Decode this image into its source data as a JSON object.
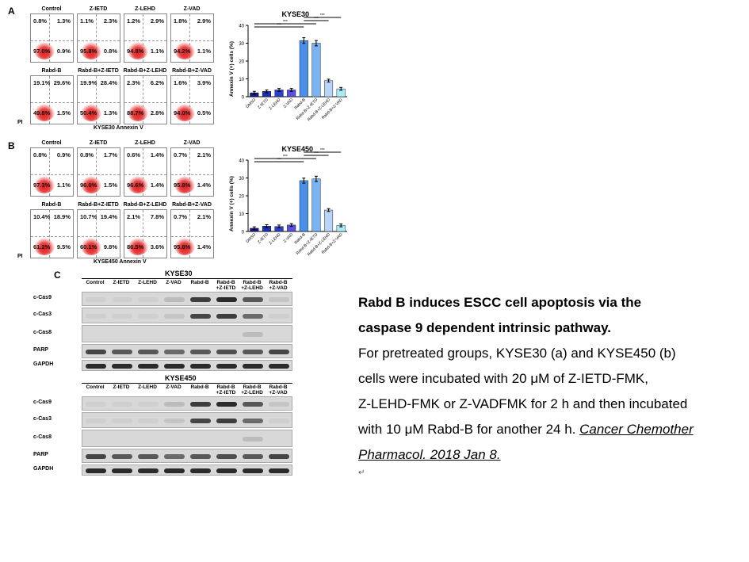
{
  "panels": {
    "a": "A",
    "b": "B",
    "c": "C"
  },
  "flow_a": {
    "top_labels": [
      "Control",
      "Z-IETD",
      "Z-LEHD",
      "Z-VAD"
    ],
    "bottom_labels": [
      "Rabd-B",
      "Rabd-B+Z-IETD",
      "Rabd-B+Z-LEHD",
      "Rabd-B+Z-VAD"
    ],
    "top_q": [
      [
        "0.8%",
        "1.3%",
        "97.0%",
        "0.9%"
      ],
      [
        "1.1%",
        "2.3%",
        "95.8%",
        "0.8%"
      ],
      [
        "1.2%",
        "2.9%",
        "94.8%",
        "1.1%"
      ],
      [
        "1.8%",
        "2.9%",
        "94.2%",
        "1.1%"
      ]
    ],
    "bottom_q": [
      [
        "19.1%",
        "29.6%",
        "49.8%",
        "1.5%"
      ],
      [
        "19.9%",
        "28.4%",
        "50.4%",
        "1.3%"
      ],
      [
        "2.3%",
        "6.2%",
        "88.7%",
        "2.8%"
      ],
      [
        "1.6%",
        "3.9%",
        "94.0%",
        "0.5%"
      ]
    ],
    "xaxis": "KYSE30 Annexin V",
    "yaxis": "PI"
  },
  "flow_b": {
    "top_labels": [
      "Control",
      "Z-IETD",
      "Z-LEHD",
      "Z-VAD"
    ],
    "bottom_labels": [
      "Rabd-B",
      "Rabd-B+Z-IETD",
      "Rabd-B+Z-LEHD",
      "Rabd-B+Z-VAD"
    ],
    "top_q": [
      [
        "0.8%",
        "0.9%",
        "97.3%",
        "1.1%"
      ],
      [
        "0.8%",
        "1.7%",
        "96.0%",
        "1.5%"
      ],
      [
        "0.6%",
        "1.4%",
        "96.6%",
        "1.4%"
      ],
      [
        "0.7%",
        "2.1%",
        "95.8%",
        "1.4%"
      ]
    ],
    "bottom_q": [
      [
        "10.4%",
        "18.9%",
        "61.2%",
        "9.5%"
      ],
      [
        "10.7%",
        "19.4%",
        "60.1%",
        "9.8%"
      ],
      [
        "2.1%",
        "7.8%",
        "86.5%",
        "3.6%"
      ],
      [
        "0.7%",
        "2.1%",
        "95.8%",
        "1.4%"
      ]
    ],
    "xaxis": "KYSE450 Annexin V",
    "yaxis": "PI"
  },
  "chart_data": [
    {
      "type": "bar",
      "title": "KYSE30",
      "ylabel": "Annexin V (+) cells (%)",
      "ylim": [
        0,
        40
      ],
      "yticks": [
        0,
        10,
        20,
        30,
        40
      ],
      "categories": [
        "DMSO",
        "Z-IETD",
        "Z-LEHD",
        "Z-VAD",
        "Rabd-B",
        "Rabd-B+Z-IETD",
        "Rabd-B+Z-LEHD",
        "Rabd-B+Z-VAD"
      ],
      "values": [
        2.2,
        3.0,
        3.8,
        3.8,
        31.5,
        30.0,
        9.0,
        4.4
      ],
      "colors": [
        "#1a1a8c",
        "#1e2fb0",
        "#2a3fd0",
        "#5a50e0",
        "#4a90e8",
        "#7ab4f0",
        "#b8d4f8",
        "#a8ecf8"
      ],
      "significance": "***"
    },
    {
      "type": "bar",
      "title": "KYSE450",
      "ylabel": "Annexin V (+) cells (%)",
      "ylim": [
        0,
        40
      ],
      "yticks": [
        0,
        10,
        20,
        30,
        40
      ],
      "categories": [
        "DMSO",
        "Z-IETD",
        "Z-LEHD",
        "Z-VAD",
        "Rabd-B",
        "Rabd-B+Z-IETD",
        "Rabd-B+Z-LEHD",
        "Rabd-B+Z-VAD"
      ],
      "values": [
        1.8,
        3.0,
        2.8,
        3.6,
        28.5,
        29.5,
        12.0,
        3.4
      ],
      "colors": [
        "#1a1a8c",
        "#1e2fb0",
        "#2a3fd0",
        "#5a50e0",
        "#4a90e8",
        "#7ab4f0",
        "#b8d4f8",
        "#a8ecf8"
      ],
      "significance": "***"
    }
  ],
  "wb": {
    "kyse30_title": "KYSE30",
    "kyse450_title": "KYSE450",
    "lanes": [
      "Control",
      "Z-IETD",
      "Z-LEHD",
      "Z-VAD",
      "Rabd-B",
      "Rabd-B\n+Z-IETD",
      "Rabd-B\n+Z-LEHD",
      "Rabd-B\n+Z-VAD"
    ],
    "rows": [
      "c-Cas9",
      "c-Cas3",
      "c-Cas8",
      "PARP",
      "GAPDH"
    ]
  },
  "caption": {
    "title_line1": "Rabd B induces ESCC cell apoptosis via the",
    "title_line2": "caspase 9 dependent intrinsic pathway.",
    "body1": "For pretreated groups, KYSE30 (a) and KYSE450 (b)",
    "body2": "cells were incubated with 20 μM of Z-IETD-FMK,",
    "body3": "Z-LEHD-FMK or Z-VADFMK for 2 h and then incubated",
    "body4": "with 10 μM Rabd-B for another 24 h.",
    "citation_a": "Cancer Chemother",
    "citation_b": "Pharmacol. 2018 Jan 8.",
    "mark": "↵"
  }
}
